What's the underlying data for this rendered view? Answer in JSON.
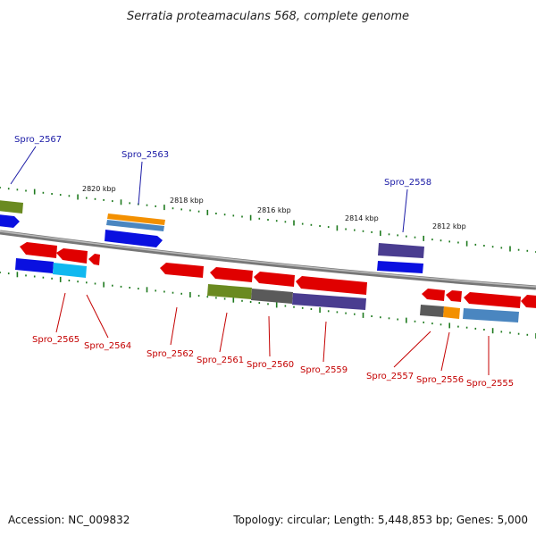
{
  "title": "Serratia proteamaculans 568, complete genome",
  "footer": {
    "accession": "Accession: NC_009832",
    "summary": "Topology: circular; Length: 5,448,853 bp; Genes: 5,000"
  },
  "scale_labels": [
    "2820 kbp",
    "2818 kbp",
    "2816 kbp",
    "2814 kbp",
    "2812 kbp"
  ],
  "gene_labels": {
    "top": [
      "Spro_2567",
      "Spro_2563",
      "Spro_2558"
    ],
    "bottom": [
      "Spro_2565",
      "Spro_2564",
      "Spro_2562",
      "Spro_2561",
      "Spro_2560",
      "Spro_2559",
      "Spro_2557",
      "Spro_2556",
      "Spro_2555"
    ]
  },
  "colors": {
    "cds_red": "#e00000",
    "gene_blue": "#0a10e0",
    "cyan": "#10b8f0",
    "olive": "#6a8a20",
    "gray": "#5a5a5a",
    "indigo": "#4a3d90",
    "steelblue": "#4a86c0",
    "orange": "#f39000",
    "tick_green": "#1e7a1e",
    "backbone": "#8a8a8a",
    "label_top": "#1a1aa6",
    "label_bottom": "#c40000"
  }
}
